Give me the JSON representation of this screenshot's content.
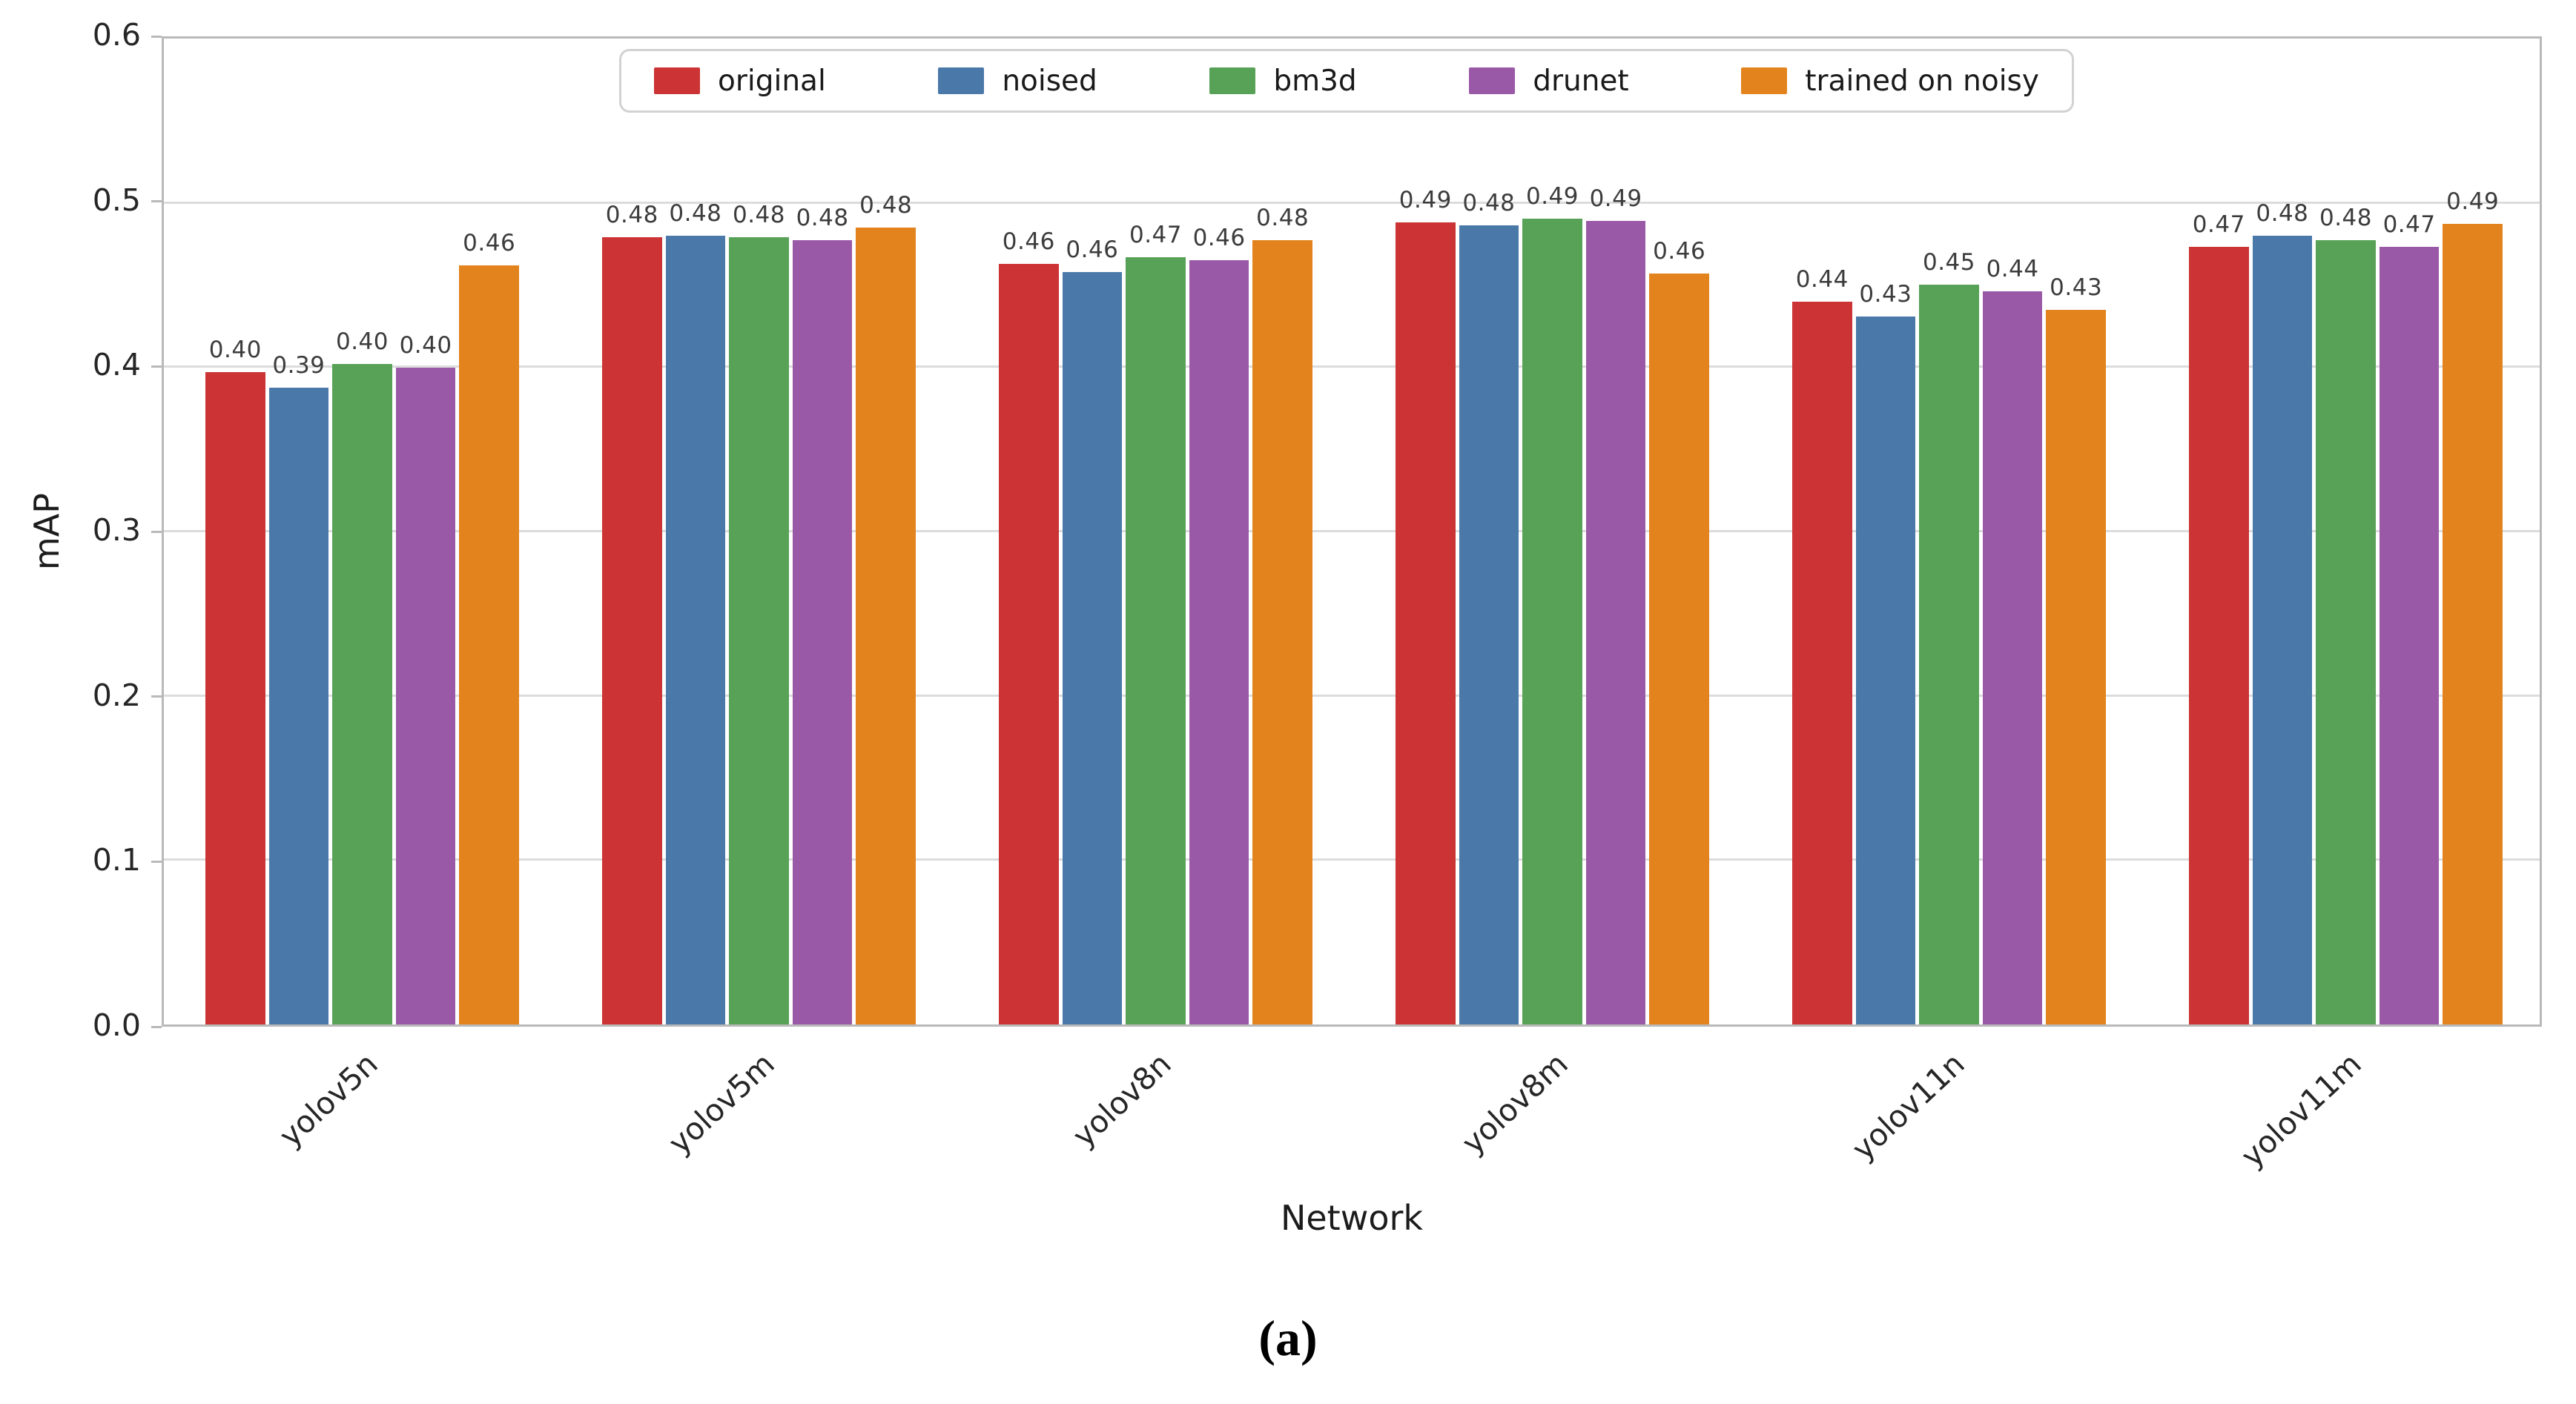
{
  "chart_data": {
    "type": "bar",
    "title": "",
    "xlabel": "Network",
    "ylabel": "mAP",
    "ylim": [
      0,
      0.6
    ],
    "yticks": [
      "0.0",
      "0.1",
      "0.2",
      "0.3",
      "0.4",
      "0.5",
      "0.6"
    ],
    "grid": "horizontal",
    "legend_position": "top-center-inside",
    "categories": [
      "yolov5n",
      "yolov5m",
      "yolov8n",
      "yolov8m",
      "yolov11n",
      "yolov11m"
    ],
    "series": [
      {
        "name": "original",
        "color": "#cc3334",
        "values": [
          0.395,
          0.477,
          0.461,
          0.486,
          0.438,
          0.471
        ],
        "labels": [
          "0.40",
          "0.48",
          "0.46",
          "0.49",
          "0.44",
          "0.47"
        ]
      },
      {
        "name": "noised",
        "color": "#4a79a9",
        "values": [
          0.386,
          0.478,
          0.456,
          0.484,
          0.429,
          0.478
        ],
        "labels": [
          "0.39",
          "0.48",
          "0.46",
          "0.48",
          "0.43",
          "0.48"
        ]
      },
      {
        "name": "bm3d",
        "color": "#57a257",
        "values": [
          0.4,
          0.477,
          0.465,
          0.488,
          0.448,
          0.475
        ],
        "labels": [
          "0.40",
          "0.48",
          "0.47",
          "0.49",
          "0.45",
          "0.48"
        ]
      },
      {
        "name": "drunet",
        "color": "#9a59a7",
        "values": [
          0.398,
          0.475,
          0.463,
          0.487,
          0.444,
          0.471
        ],
        "labels": [
          "0.40",
          "0.48",
          "0.46",
          "0.49",
          "0.44",
          "0.47"
        ]
      },
      {
        "name": "trained on noisy",
        "color": "#e3831d",
        "values": [
          0.46,
          0.483,
          0.475,
          0.455,
          0.433,
          0.485
        ],
        "labels": [
          "0.46",
          "0.48",
          "0.48",
          "0.46",
          "0.43",
          "0.49"
        ]
      }
    ]
  },
  "caption": "(a)",
  "style_colors": {
    "spine": "#b9b9b9",
    "gridline": "#dcdcdc",
    "tick_text": "#262626",
    "value_text": "#3c3c3c",
    "legend_border": "#d2d2d2"
  }
}
